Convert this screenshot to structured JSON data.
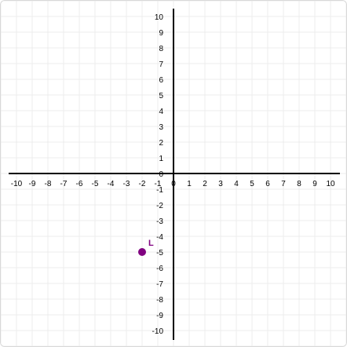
{
  "chart_data": {
    "type": "scatter",
    "title": "",
    "xlabel": "",
    "ylabel": "",
    "xlim": [
      -10,
      10
    ],
    "ylim": [
      -10,
      10
    ],
    "grid": true,
    "x_ticks": [
      -10,
      -9,
      -8,
      -7,
      -6,
      -5,
      -4,
      -3,
      -2,
      -1,
      0,
      1,
      2,
      3,
      4,
      5,
      6,
      7,
      8,
      9,
      10
    ],
    "y_ticks": [
      -10,
      -9,
      -8,
      -7,
      -6,
      -5,
      -4,
      -3,
      -2,
      -1,
      0,
      1,
      2,
      3,
      4,
      5,
      6,
      7,
      8,
      9,
      10
    ],
    "points": [
      {
        "label": "L",
        "x": -2,
        "y": -5,
        "color": "#800080"
      }
    ]
  },
  "colors": {
    "grid": "#ececec",
    "axis": "#000000"
  }
}
